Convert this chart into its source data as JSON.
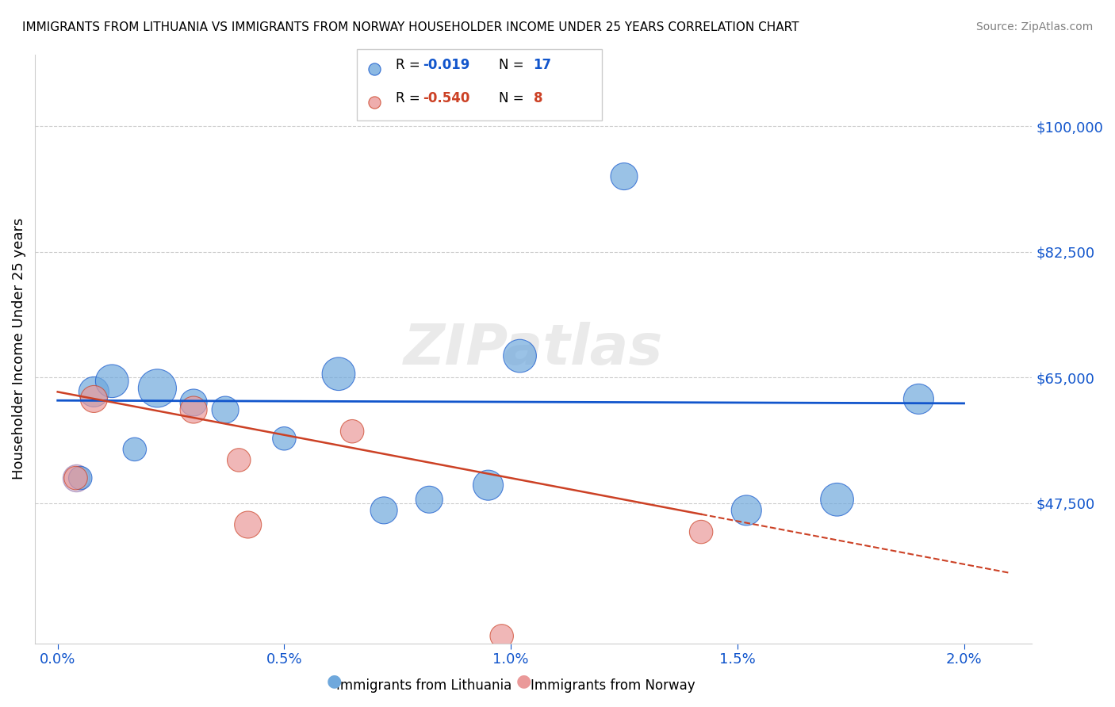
{
  "title": "IMMIGRANTS FROM LITHUANIA VS IMMIGRANTS FROM NORWAY HOUSEHOLDER INCOME UNDER 25 YEARS CORRELATION CHART",
  "source": "Source: ZipAtlas.com",
  "ylabel": "Householder Income Under 25 years",
  "xlabel_ticks": [
    "0.0%",
    "0.5%",
    "1.0%",
    "1.5%",
    "2.0%"
  ],
  "xlabel_vals": [
    0.0,
    0.5,
    1.0,
    1.5,
    2.0
  ],
  "ytick_labels": [
    "$47,500",
    "$65,000",
    "$82,500",
    "$100,000"
  ],
  "ytick_vals": [
    47500,
    65000,
    82500,
    100000
  ],
  "ylim": [
    28000,
    110000
  ],
  "xlim": [
    -0.05,
    2.15
  ],
  "legend_blue_r": "R = ",
  "legend_blue_rval": "-0.019",
  "legend_blue_n": "N = ",
  "legend_blue_nval": "17",
  "legend_pink_r": "R = ",
  "legend_pink_rval": "-0.540",
  "legend_pink_n": "N = ",
  "legend_pink_nval": "8",
  "blue_color": "#6fa8dc",
  "pink_color": "#ea9999",
  "blue_line_color": "#1155cc",
  "pink_line_color": "#cc4125",
  "watermark": "ZIPatlas",
  "blue_x": [
    0.05,
    0.08,
    0.12,
    0.17,
    0.22,
    0.3,
    0.37,
    0.5,
    0.62,
    0.72,
    0.82,
    0.95,
    1.02,
    1.25,
    1.52,
    1.72,
    1.9
  ],
  "blue_y": [
    51000,
    63000,
    64500,
    55000,
    63500,
    61500,
    60500,
    56500,
    65500,
    46500,
    48000,
    50000,
    68000,
    93000,
    46500,
    48000,
    62000
  ],
  "blue_size": [
    30,
    50,
    60,
    30,
    80,
    40,
    40,
    30,
    60,
    40,
    40,
    50,
    60,
    40,
    50,
    60,
    50
  ],
  "pink_x": [
    0.04,
    0.08,
    0.3,
    0.4,
    0.42,
    0.65,
    0.98,
    1.42
  ],
  "pink_y": [
    51000,
    62000,
    60500,
    53500,
    44500,
    57500,
    29000,
    43500
  ],
  "pink_size": [
    30,
    40,
    40,
    30,
    40,
    30,
    30,
    30
  ],
  "big_dot_x": 0.04,
  "big_dot_y": 51000,
  "big_dot_size": 400
}
